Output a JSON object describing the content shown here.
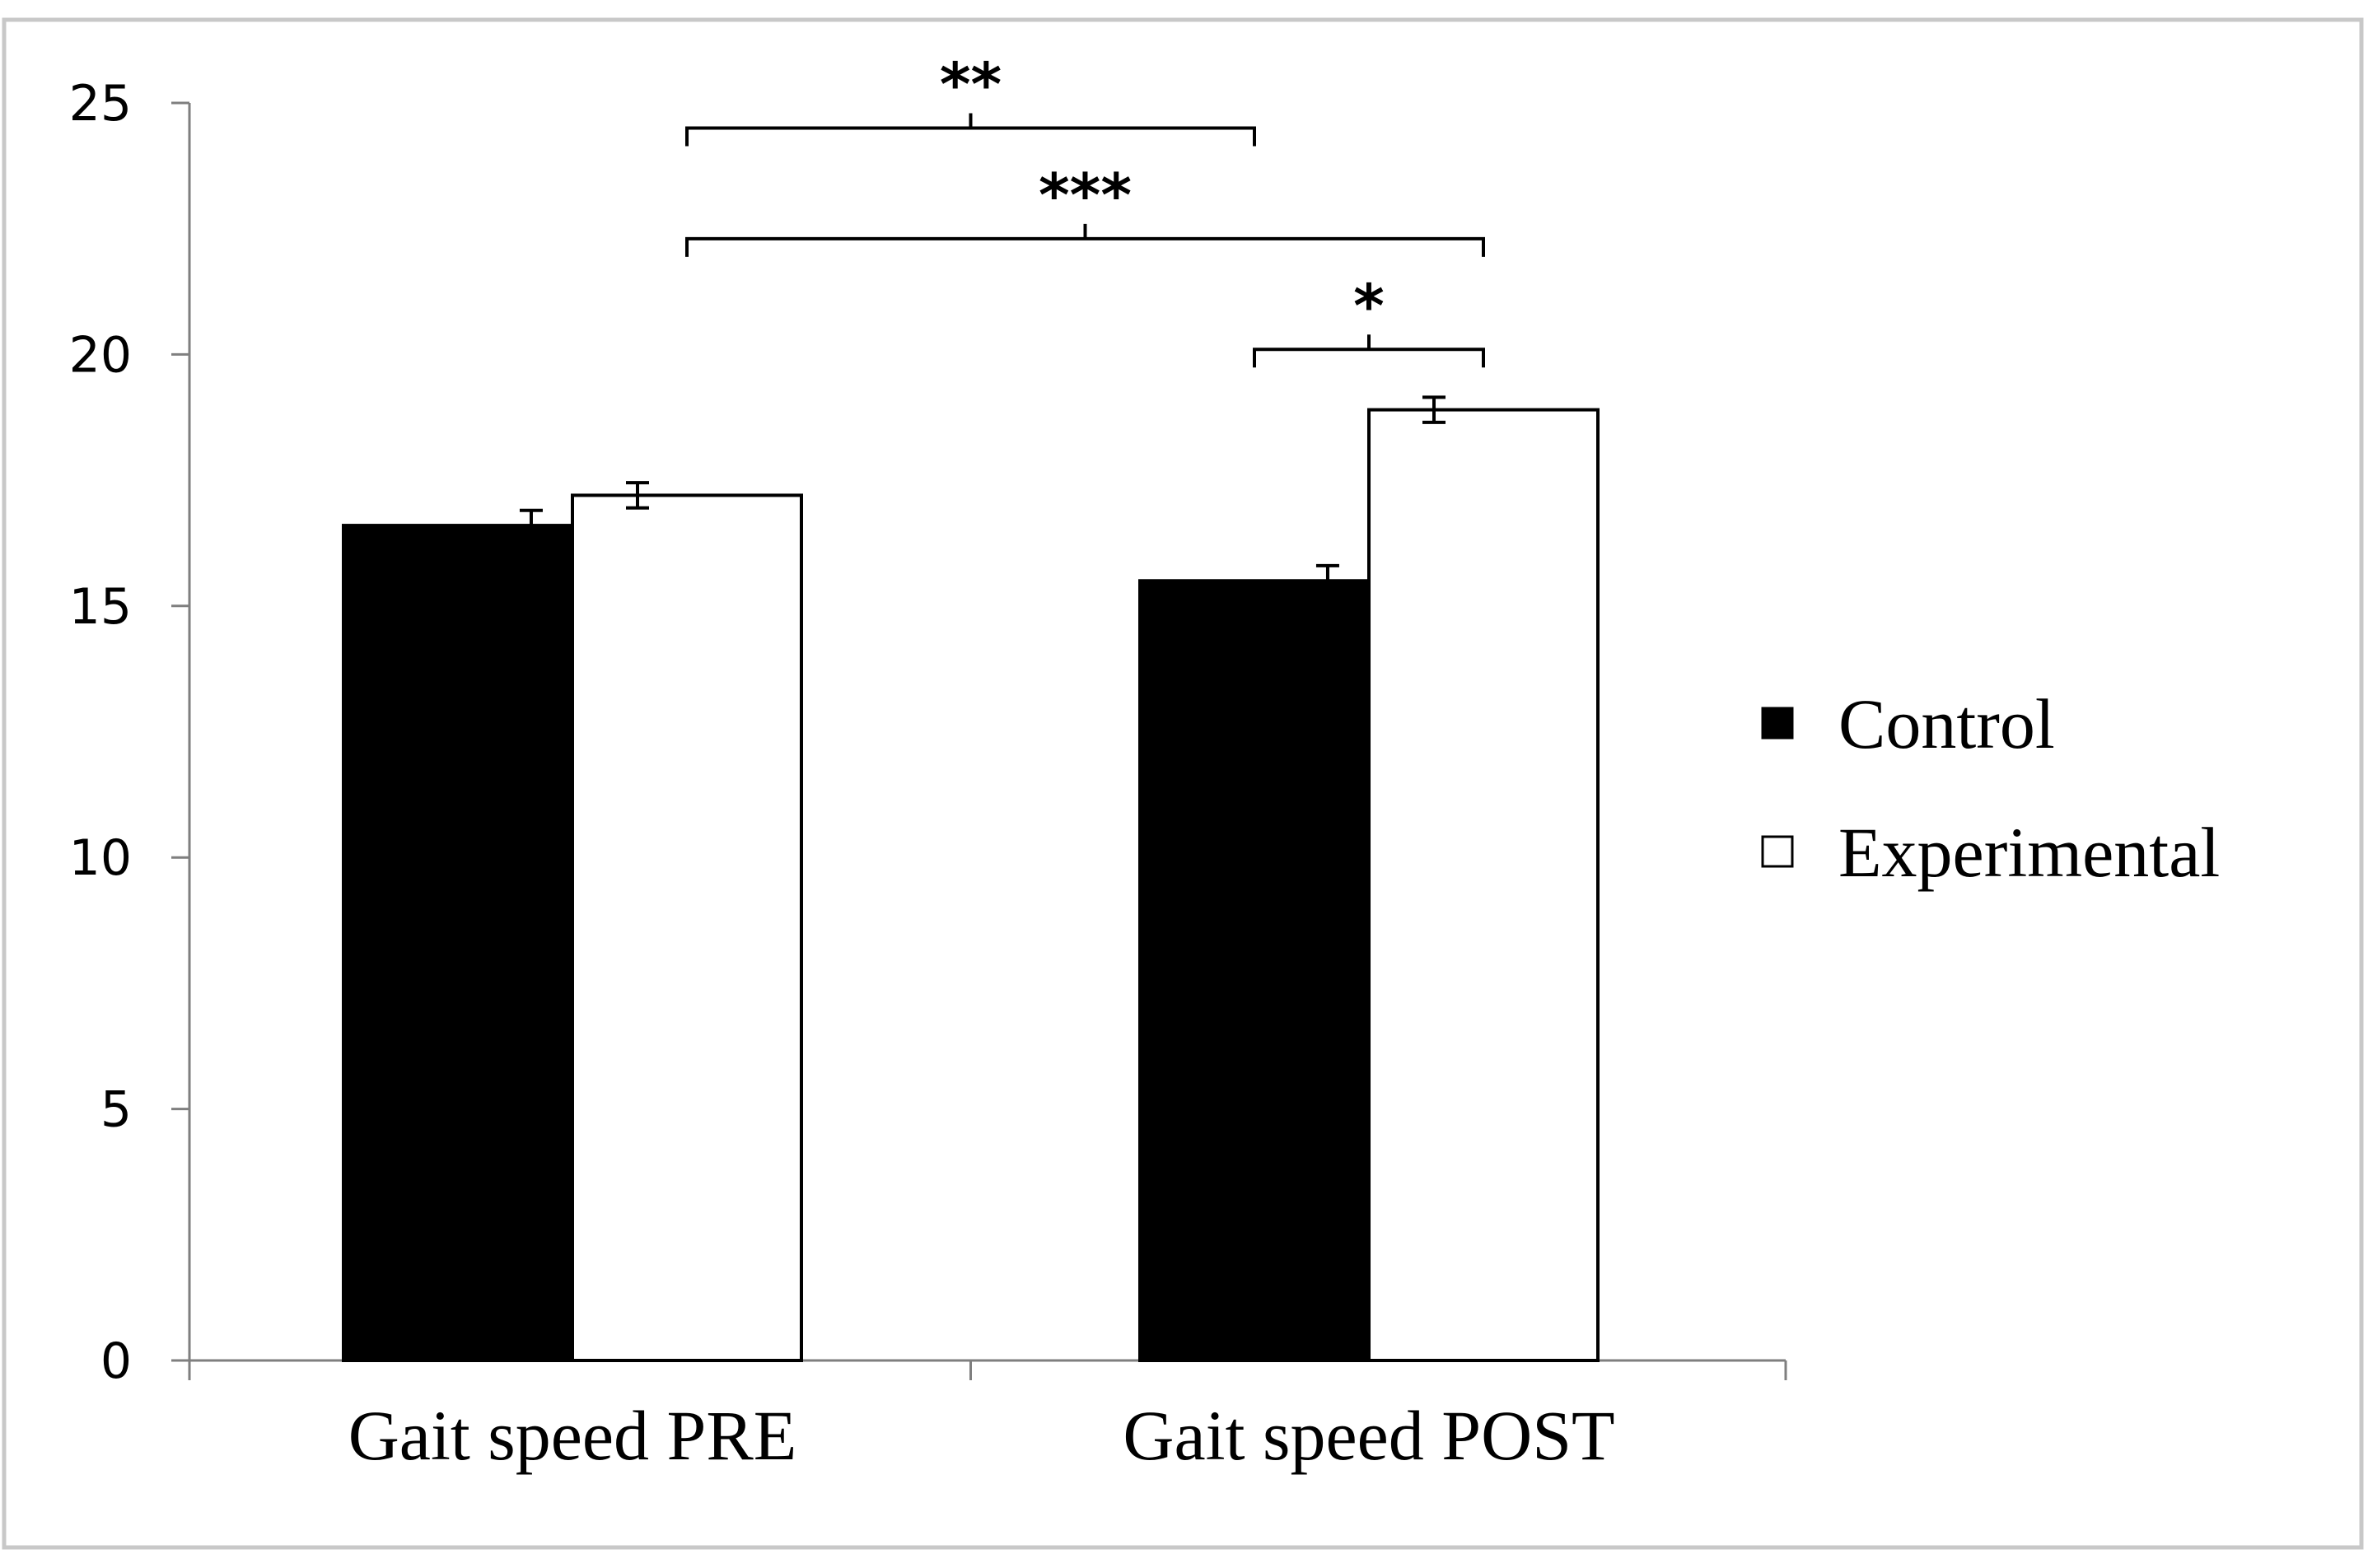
{
  "chart_data": {
    "type": "bar",
    "title": "",
    "xlabel": "",
    "ylabel": "",
    "ylim": [
      0,
      25
    ],
    "yticks": [
      0,
      5,
      10,
      15,
      20,
      25
    ],
    "categories": [
      "Gait speed PRE",
      "Gait speed POST"
    ],
    "series": [
      {
        "name": "Control",
        "fill": "#000000",
        "values": [
          16.6,
          15.5
        ],
        "errors": [
          0.3,
          0.3
        ]
      },
      {
        "name": "Experimental",
        "fill": "#ffffff",
        "values": [
          17.2,
          18.9
        ],
        "errors": [
          0.25,
          0.25
        ]
      }
    ],
    "legend": {
      "position": "right",
      "entries": [
        "Control",
        "Experimental"
      ]
    },
    "significance": [
      {
        "label": "**",
        "from": {
          "category": 0,
          "series": 1
        },
        "to": {
          "category": 1,
          "series": 0
        },
        "level": 24.5
      },
      {
        "label": "***",
        "from": {
          "category": 0,
          "series": 1
        },
        "to": {
          "category": 1,
          "series": 1
        },
        "level": 22.3
      },
      {
        "label": "*",
        "from": {
          "category": 1,
          "series": 0
        },
        "to": {
          "category": 1,
          "series": 1
        },
        "level": 20.1
      }
    ],
    "grid": false
  }
}
